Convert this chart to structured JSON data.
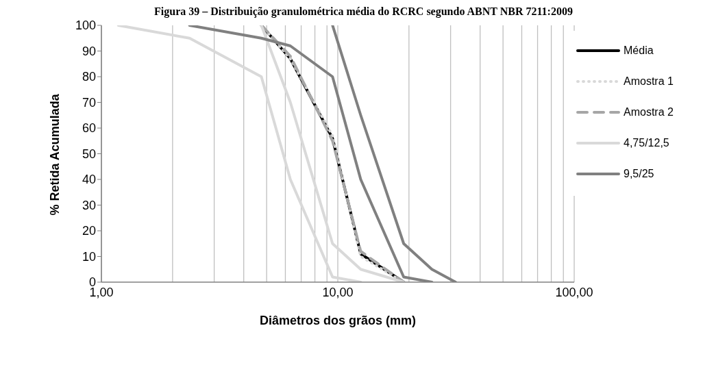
{
  "chart_data": {
    "type": "line",
    "title": "Figura 39 – Distribuição granulométrica média do RCRC segundo ABNT NBR 7211:2009",
    "xlabel": "Diâmetros dos grãos (mm)",
    "ylabel": "% Retida Acumulada",
    "log": "x",
    "xlim": [
      1,
      100
    ],
    "xticks": [
      {
        "value": 1,
        "label": "1,00"
      },
      {
        "value": 2,
        "label": null
      },
      {
        "value": 3,
        "label": null
      },
      {
        "value": 4,
        "label": null
      },
      {
        "value": 5,
        "label": null
      },
      {
        "value": 6,
        "label": null
      },
      {
        "value": 7,
        "label": null
      },
      {
        "value": 8,
        "label": null
      },
      {
        "value": 9,
        "label": null
      },
      {
        "value": 10,
        "label": "10,00"
      },
      {
        "value": 20,
        "label": null
      },
      {
        "value": 30,
        "label": null
      },
      {
        "value": 40,
        "label": null
      },
      {
        "value": 50,
        "label": null
      },
      {
        "value": 60,
        "label": null
      },
      {
        "value": 70,
        "label": null
      },
      {
        "value": 80,
        "label": null
      },
      {
        "value": 90,
        "label": null
      },
      {
        "value": 100,
        "label": "100,00"
      }
    ],
    "ylim": [
      0,
      100
    ],
    "yticks": [
      0,
      10,
      20,
      30,
      40,
      50,
      60,
      70,
      80,
      90,
      100
    ],
    "grid": "x",
    "legend": "top right",
    "marker": "none",
    "series": [
      {
        "name": "Média",
        "color": "#000000",
        "line_style": "solid",
        "x": [
          4.75,
          6.3,
          9.5,
          12.5,
          19
        ],
        "values": [
          100,
          87,
          56,
          11,
          0
        ]
      },
      {
        "name": "Amostra 1",
        "color": "#d9d9d9",
        "line_style": "dotted",
        "x": [
          4.75,
          6.3,
          9.5,
          12.5,
          19
        ],
        "values": [
          100,
          87,
          57,
          10,
          0
        ]
      },
      {
        "name": "Amostra 2",
        "color": "#a6a6a6",
        "line_style": "dashed",
        "x": [
          4.75,
          6.3,
          9.5,
          12.5,
          19
        ],
        "values": [
          100,
          88,
          55,
          12,
          0
        ]
      },
      {
        "name": "4,75/12,5",
        "color": "#d9d9d9",
        "line_style": "solid",
        "x": [
          1.18,
          2.36,
          4.75,
          6.3,
          9.5,
          12.5
        ],
        "values": [
          100,
          95,
          80,
          40,
          2,
          0
        ]
      },
      {
        "color": "#d9d9d9",
        "line_style": "solid",
        "x": [
          4.75,
          6.3,
          9.5,
          12.5,
          19
        ],
        "values": [
          100,
          70,
          15,
          5,
          0
        ]
      },
      {
        "name": "9,5/25",
        "color": "#808080",
        "line_style": "solid",
        "x": [
          2.36,
          4.75,
          6.3,
          9.5,
          12.5,
          19,
          25
        ],
        "values": [
          100,
          95,
          92,
          80,
          40,
          2,
          0
        ]
      },
      {
        "color": "#808080",
        "line_style": "solid",
        "x": [
          9.5,
          12.5,
          19,
          25,
          31.5
        ],
        "values": [
          100,
          65,
          15,
          5,
          0
        ]
      }
    ]
  }
}
